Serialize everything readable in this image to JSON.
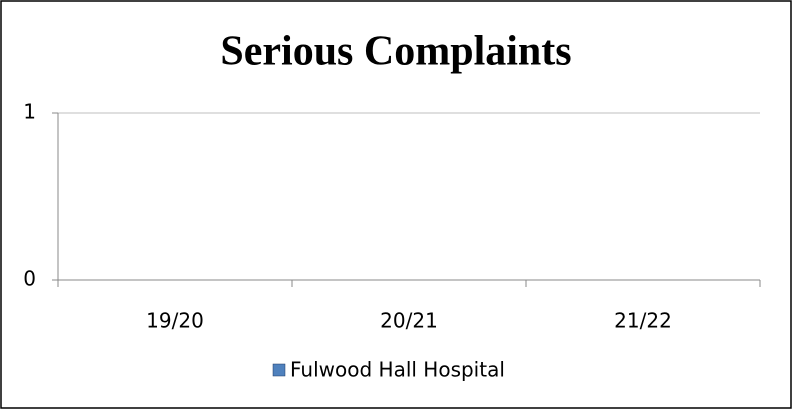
{
  "chart_data": {
    "type": "bar",
    "title": "Serious Complaints",
    "categories": [
      "19/20",
      "20/21",
      "21/22"
    ],
    "series": [
      {
        "name": "Fulwood Hall Hospital",
        "color": "#4f81bd",
        "values": [
          0,
          0,
          0
        ]
      }
    ],
    "ylim": [
      0,
      1
    ],
    "yticks": [
      0,
      1
    ],
    "grid": true,
    "legend": "bottom"
  }
}
